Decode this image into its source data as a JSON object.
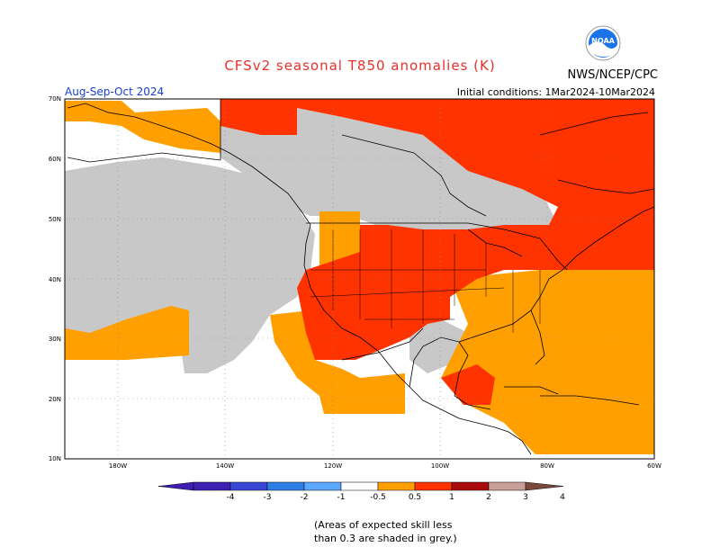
{
  "header": {
    "title": "CFSv2 seasonal T850 anomalies (K)",
    "agency": "NWS/NCEP/CPC",
    "season": "Aug-Sep-Oct 2024",
    "initial_conditions": "Initial conditions: 1Mar2024-10Mar2024",
    "logo_text": "NOAA"
  },
  "map": {
    "lat_labels": [
      "70N",
      "60N",
      "50N",
      "40N",
      "30N",
      "20N",
      "10N"
    ],
    "lon_labels": [
      "180W",
      "140W",
      "120W",
      "100W",
      "80W",
      "60W"
    ],
    "grid": true,
    "legend_categories": [
      {
        "label": "grey: skill < 0.3",
        "color": "#c8c8c8"
      },
      {
        "label": "0.5 to 1",
        "color": "#ff9f00"
      },
      {
        "label": "1 to 2",
        "color": "#ff3300"
      }
    ]
  },
  "colorbar": {
    "labels": [
      "-4",
      "-3",
      "-2",
      "-1",
      "-0.5",
      "0.5",
      "1",
      "2",
      "3",
      "4"
    ],
    "colors": [
      "#3f1fb3",
      "#3a46d6",
      "#2f7fe6",
      "#5aa8ff",
      "#ffffff",
      "#ff9f00",
      "#ff3300",
      "#aa0a0a",
      "#c8a096",
      "#7a4a3c"
    ]
  },
  "note": {
    "line1": "(Areas of expected skill less",
    "line2": "than 0.3 are shaded in grey.)"
  },
  "colors": {
    "title": "#e8302a",
    "season": "#1a3fd1",
    "orange": "#ff9f00",
    "red": "#ff3300",
    "grey": "#c8c8c8"
  }
}
